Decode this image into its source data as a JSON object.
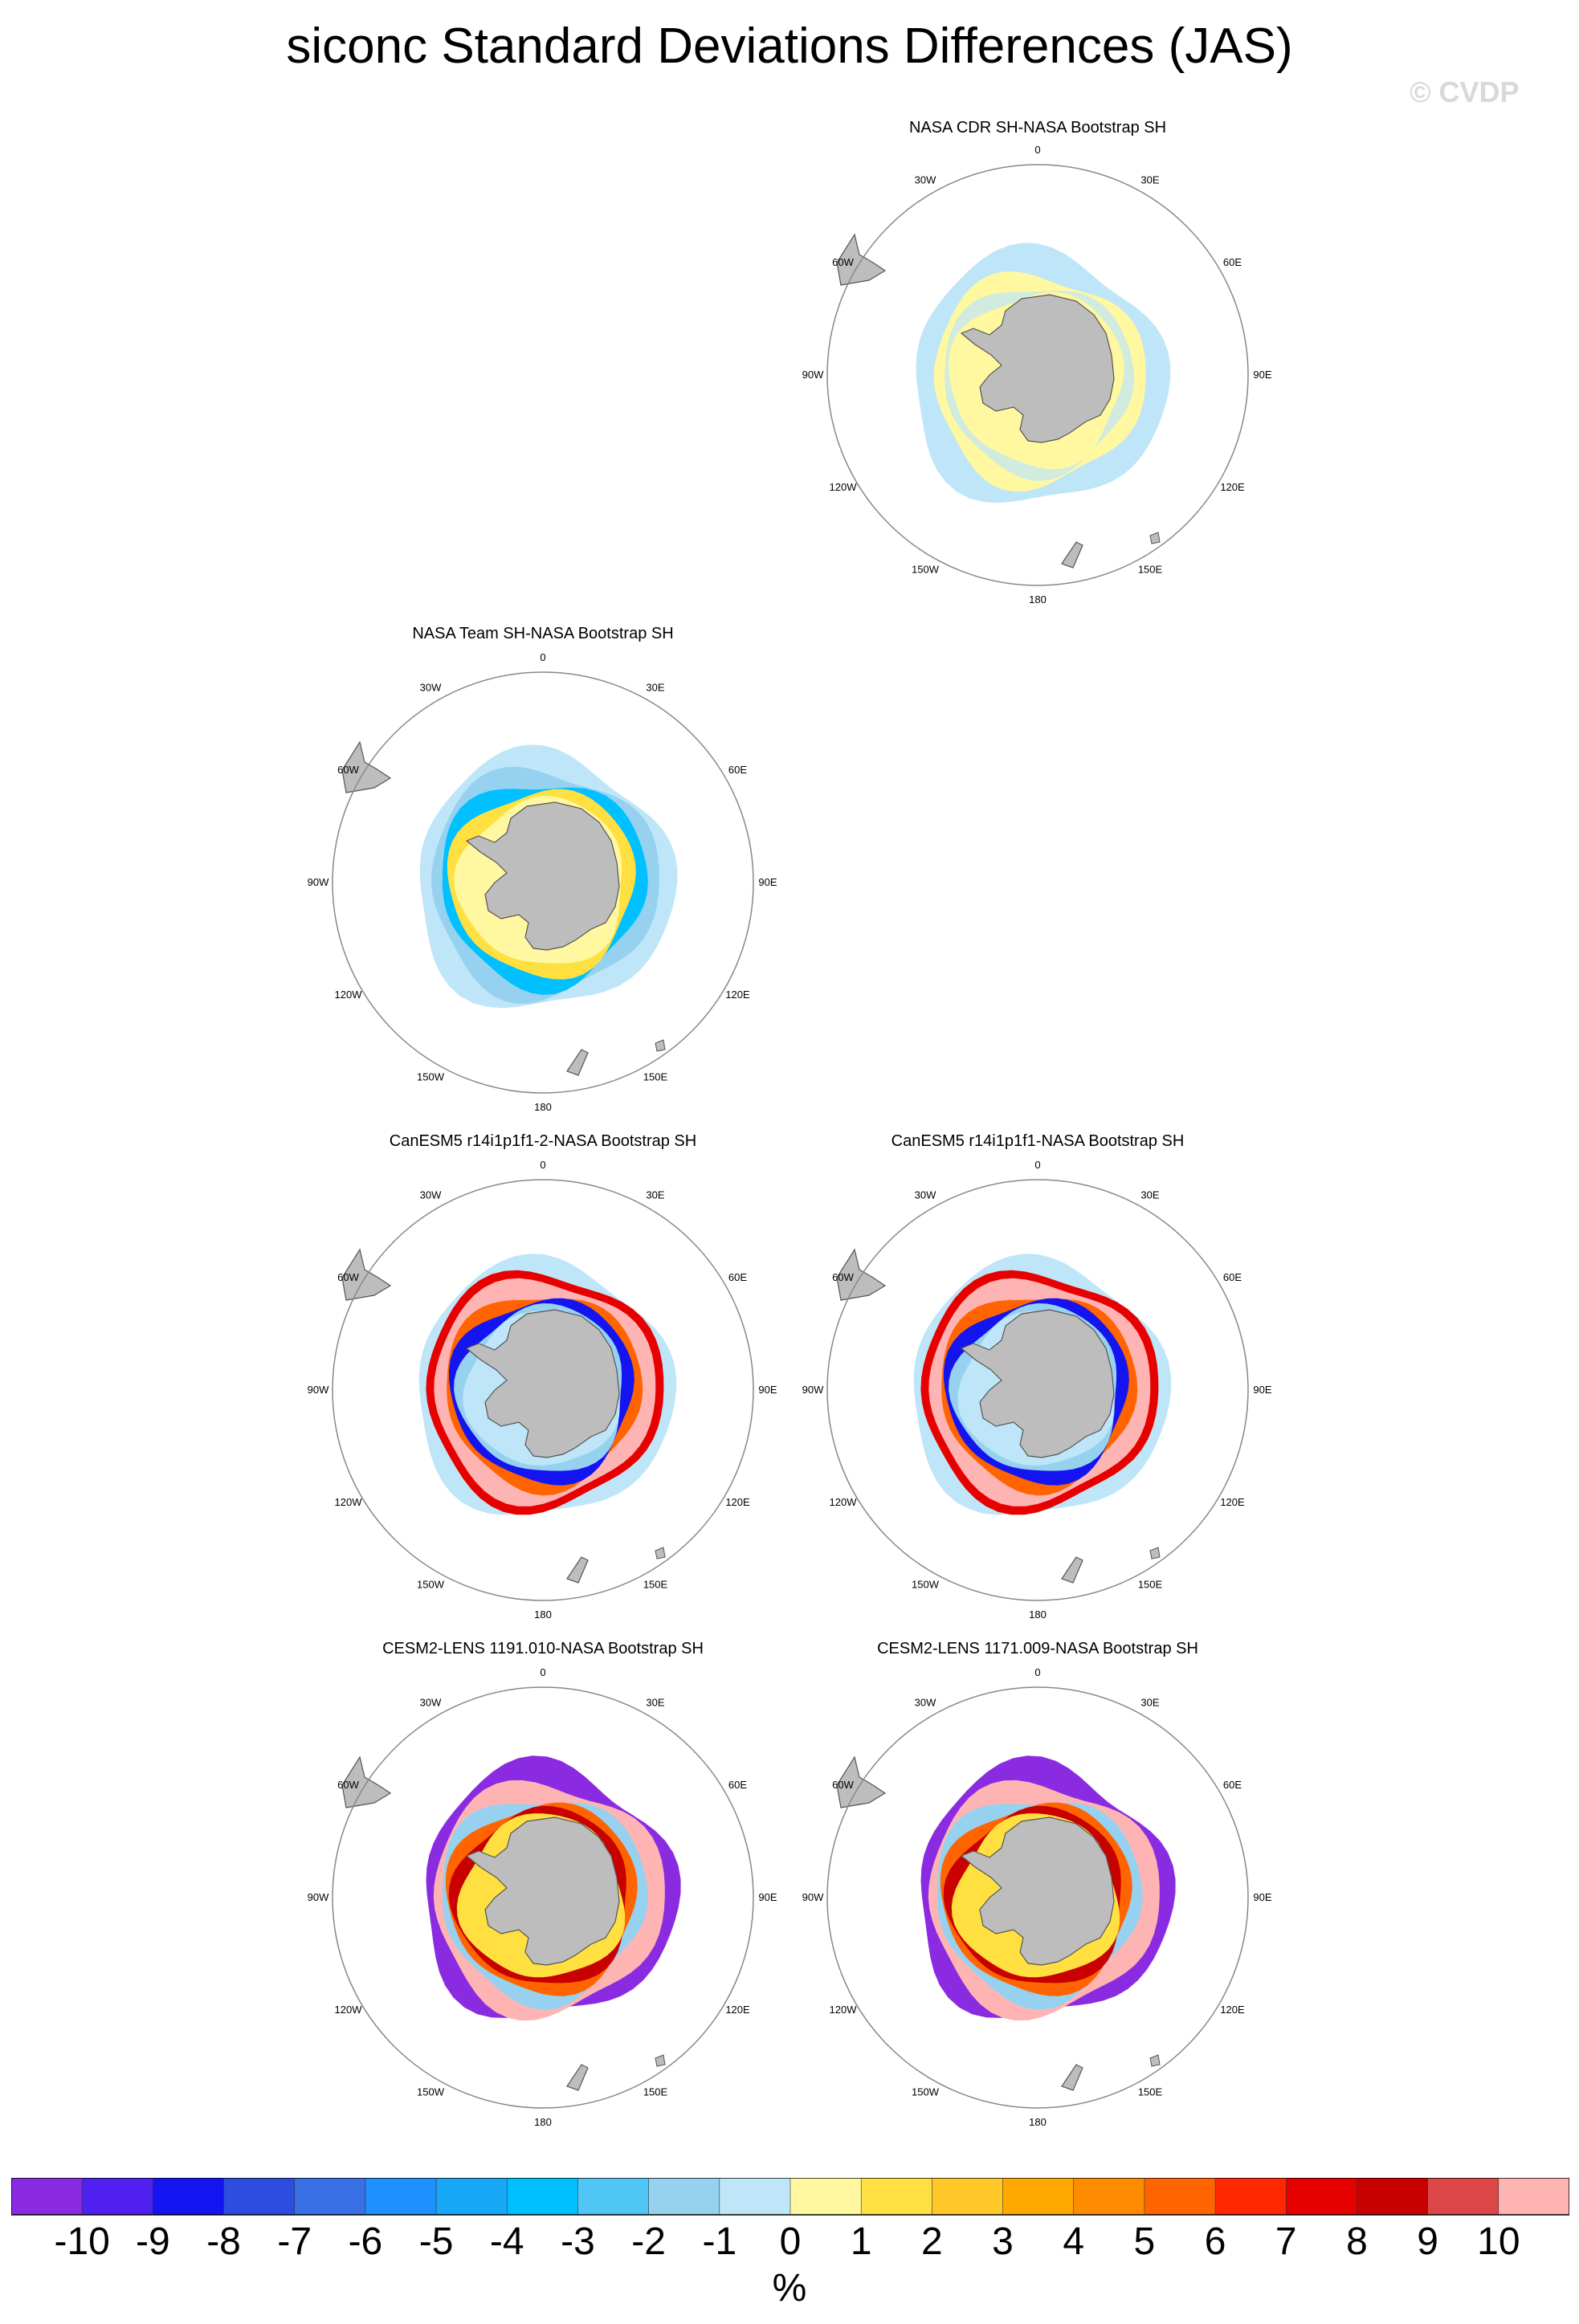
{
  "title": "siconc Standard Deviations Differences (JAS)",
  "watermark": "© CVDP",
  "map_labels": [
    "0",
    "30E",
    "60E",
    "90E",
    "120E",
    "150E",
    "180",
    "150W",
    "120W",
    "90W",
    "60W",
    "30W"
  ],
  "panels": [
    {
      "id": "p1",
      "title": "NASA CDR SH-NASA Bootstrap SH",
      "pattern": "cdr"
    },
    {
      "id": "p2",
      "title": "NASA Team SH-NASA Bootstrap SH",
      "pattern": "team"
    },
    {
      "id": "p3",
      "title": "CanESM5 r14i1p1f1-2-NASA Bootstrap SH",
      "pattern": "canesm"
    },
    {
      "id": "p4",
      "title": "CanESM5 r14i1p1f1-NASA Bootstrap SH",
      "pattern": "canesm"
    },
    {
      "id": "p5",
      "title": "CESM2-LENS 1191.010-NASA Bootstrap SH",
      "pattern": "cesm"
    },
    {
      "id": "p6",
      "title": "CESM2-LENS 1171.009-NASA Bootstrap SH",
      "pattern": "cesm"
    }
  ],
  "colorbar": {
    "colors": [
      "#8a2be2",
      "#5020f0",
      "#1414f0",
      "#2d4de0",
      "#3a70e6",
      "#1e90ff",
      "#18a8f8",
      "#00c0ff",
      "#50c6f6",
      "#96d2f0",
      "#bee6f8",
      "#fff8a0",
      "#ffe040",
      "#ffc828",
      "#ffa800",
      "#ff8c00",
      "#ff6400",
      "#ff2800",
      "#e60000",
      "#c80000",
      "#dc4646",
      "#ffb4b4"
    ],
    "labels": [
      "-10",
      "-9",
      "-8",
      "-7",
      "-6",
      "-5",
      "-4",
      "-3",
      "-2",
      "-1",
      "0",
      "1",
      "2",
      "3",
      "4",
      "5",
      "6",
      "7",
      "8",
      "9",
      "10"
    ],
    "unit": "%"
  }
}
